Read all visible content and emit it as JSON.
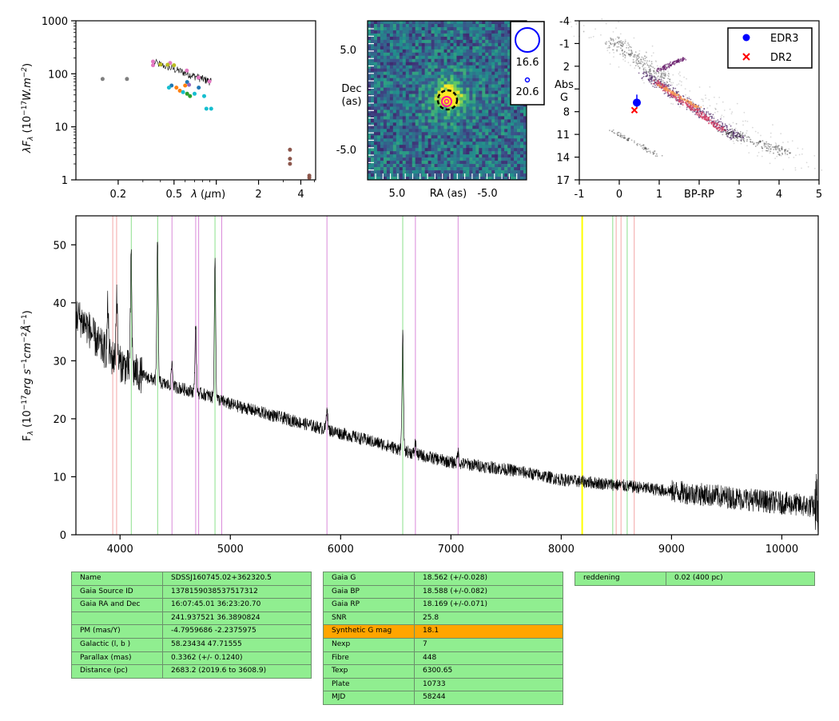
{
  "chart_data": [
    {
      "type": "scatter",
      "id": "sed",
      "xlabel": "λ (μm)",
      "ylabel": "λF_λ (10^-17 W.m^-2)",
      "xscale": "log",
      "yscale": "log",
      "xlim": [
        0.1,
        5.1
      ],
      "ylim": [
        1,
        1000
      ],
      "x_ticks": [
        "0.2",
        "0.5",
        "λ (μm)",
        "2",
        "4"
      ],
      "y_ticks": [
        "1000",
        "100",
        "10",
        "1"
      ],
      "series": [
        {
          "color": "#7f7f7f",
          "points": [
            [
              0.155,
              80
            ],
            [
              0.231,
              80
            ]
          ]
        },
        {
          "color": "#e377c2",
          "points": [
            [
              0.354,
              170
            ],
            [
              0.354,
              145
            ],
            [
              0.469,
              160
            ],
            [
              0.617,
              115
            ],
            [
              0.748,
              85
            ],
            [
              0.893,
              72
            ]
          ]
        },
        {
          "color": "#bcbd22",
          "points": [
            [
              0.4,
              150
            ],
            [
              0.45,
              148
            ],
            [
              0.5,
              145
            ]
          ]
        },
        {
          "color": "#1f77b4",
          "points": [
            [
              0.48,
              60
            ],
            [
              0.62,
              70
            ],
            [
              0.75,
              55
            ]
          ]
        },
        {
          "color": "#ff7f0e",
          "points": [
            [
              0.52,
              55
            ],
            [
              0.55,
              48
            ],
            [
              0.6,
              60
            ]
          ]
        },
        {
          "color": "#17becf",
          "points": [
            [
              0.46,
              55
            ],
            [
              0.58,
              45
            ],
            [
              0.7,
              42
            ],
            [
              0.82,
              38
            ],
            [
              0.85,
              22
            ],
            [
              0.92,
              22
            ]
          ]
        },
        {
          "color": "#2ca02c",
          "points": [
            [
              0.62,
              42
            ],
            [
              0.65,
              38
            ]
          ]
        },
        {
          "color": "#9467bd",
          "points": [
            [
              0.64,
              62
            ]
          ]
        },
        {
          "color": "#8c564b",
          "points": [
            [
              3.35,
              3.7
            ],
            [
              3.35,
              2.5
            ],
            [
              3.35,
              2.0
            ],
            [
              4.6,
              1.2
            ],
            [
              4.6,
              1.1
            ]
          ]
        }
      ]
    },
    {
      "type": "heatmap",
      "id": "image",
      "xlabel": "RA (as)",
      "ylabel": "Dec\n(as)",
      "x_ticks": [
        "5.0",
        "-5.0"
      ],
      "y_ticks": [
        "5.0",
        "-5.0"
      ],
      "legend": [
        {
          "label": "16.6",
          "marker": "large-circle"
        },
        {
          "label": "20.6",
          "marker": "small-circle"
        }
      ]
    },
    {
      "type": "scatter",
      "id": "cmd",
      "xlabel": "BP-RP",
      "ylabel": "Abs\nG",
      "xlim": [
        -1,
        5
      ],
      "ylim": [
        17,
        -4
      ],
      "x_ticks": [
        "-1",
        "0",
        "1",
        "BP-RP",
        "3",
        "4",
        "5"
      ],
      "y_ticks": [
        "-4",
        "-1",
        "2",
        "5",
        "8",
        "11",
        "14",
        "17"
      ],
      "legend_position": "top-right",
      "series": [
        {
          "name": "EDR3",
          "color": "#0000ff",
          "marker": "circle",
          "points": [
            [
              0.44,
              6.8
            ]
          ]
        },
        {
          "name": "DR2",
          "color": "#ff0000",
          "marker": "x",
          "points": [
            [
              0.38,
              7.8
            ]
          ]
        }
      ]
    },
    {
      "type": "line",
      "id": "spectrum",
      "ylabel": "F_λ (10^-17 erg s^-1 cm^-2 Å^-1)",
      "xlim": [
        3600,
        10330
      ],
      "ylim": [
        0,
        55
      ],
      "x_ticks": [
        4000,
        5000,
        6000,
        7000,
        8000,
        9000,
        10000
      ],
      "y_ticks": [
        0,
        10,
        20,
        30,
        40,
        50
      ],
      "continuum": [
        [
          3600,
          38
        ],
        [
          3700,
          36
        ],
        [
          3800,
          33
        ],
        [
          3900,
          31
        ],
        [
          4000,
          29.5
        ],
        [
          4200,
          27.5
        ],
        [
          4400,
          26
        ],
        [
          4600,
          25
        ],
        [
          4800,
          24
        ],
        [
          5000,
          22.5
        ],
        [
          5200,
          21.5
        ],
        [
          5500,
          20
        ],
        [
          5800,
          18.5
        ],
        [
          6100,
          17
        ],
        [
          6400,
          15.5
        ],
        [
          6700,
          13.8
        ],
        [
          7000,
          12.5
        ],
        [
          7300,
          11.8
        ],
        [
          7600,
          11
        ],
        [
          8000,
          9.5
        ],
        [
          8500,
          8.6
        ],
        [
          9000,
          7.5
        ],
        [
          9500,
          6.5
        ],
        [
          10000,
          5.5
        ],
        [
          10300,
          4.8
        ]
      ],
      "emission_lines": [
        [
          3889,
          8
        ],
        [
          3970,
          12
        ],
        [
          4101,
          20
        ],
        [
          4340,
          24
        ],
        [
          4471,
          4
        ],
        [
          4686,
          12
        ],
        [
          4861,
          24
        ],
        [
          5876,
          4
        ],
        [
          6563,
          20
        ],
        [
          6678,
          2
        ],
        [
          7065,
          2
        ]
      ],
      "vlines": [
        {
          "x": 3934,
          "color": "#f4a6a6"
        },
        {
          "x": 3969,
          "color": "#f4a6a6"
        },
        {
          "x": 4102,
          "color": "#8ce08c"
        },
        {
          "x": 4341,
          "color": "#8ce08c"
        },
        {
          "x": 4471,
          "color": "#d98ad9"
        },
        {
          "x": 4686,
          "color": "#d98ad9"
        },
        {
          "x": 4713,
          "color": "#d98ad9"
        },
        {
          "x": 4861,
          "color": "#8ce08c"
        },
        {
          "x": 4922,
          "color": "#d98ad9"
        },
        {
          "x": 5876,
          "color": "#d98ad9"
        },
        {
          "x": 6563,
          "color": "#8ce08c"
        },
        {
          "x": 6678,
          "color": "#d98ad9"
        },
        {
          "x": 7065,
          "color": "#d98ad9"
        },
        {
          "x": 8190,
          "color": "#ffff00"
        },
        {
          "x": 8467,
          "color": "#8ce08c"
        },
        {
          "x": 8498,
          "color": "#f4a6a6"
        },
        {
          "x": 8542,
          "color": "#f4a6a6"
        },
        {
          "x": 8598,
          "color": "#8ce08c"
        },
        {
          "x": 8662,
          "color": "#f4a6a6"
        }
      ]
    }
  ],
  "tables": {
    "left": [
      [
        "Name",
        "SDSSJ160745.02+362320.5"
      ],
      [
        "Gaia Source ID",
        "1378159038537517312"
      ],
      [
        "Gaia RA and Dec",
        "16:07:45.01    36:23:20.70"
      ],
      [
        "",
        "241.937521    36.3890824"
      ],
      [
        "PM (mas/Y)",
        "-4.7959686    -2.2375975"
      ],
      [
        "Galactic (l, b )",
        "58.23434    47.71555"
      ],
      [
        "Parallax (mas)",
        "0.3362 (+/- 0.1240)"
      ],
      [
        "Distance (pc)",
        "2683.2 (2019.6 to 3608.9)"
      ]
    ],
    "middle": [
      [
        "Gaia G",
        "18.562 (+/-0.028)"
      ],
      [
        "Gaia BP",
        "18.588 (+/-0.082)"
      ],
      [
        "Gaia RP",
        "18.169 (+/-0.071)"
      ],
      [
        "SNR",
        "25.8"
      ],
      [
        "Synthetic G mag",
        "18.1"
      ],
      [
        "Nexp",
        "7"
      ],
      [
        "Fibre",
        "448"
      ],
      [
        "Texp",
        "6300.65"
      ],
      [
        "Plate",
        "10733"
      ],
      [
        "MJD",
        "58244"
      ]
    ],
    "right": [
      [
        "reddening",
        "0.02 (400 pc)"
      ]
    ],
    "highlight_color": "#ffa500",
    "cell_color": "#90ee90"
  }
}
